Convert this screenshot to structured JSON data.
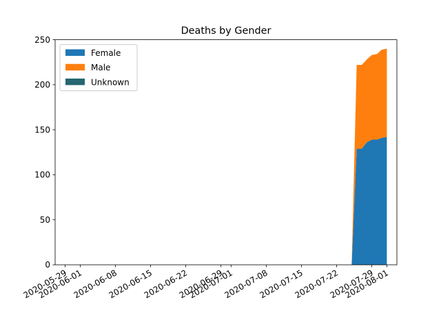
{
  "chart_data": {
    "type": "area",
    "stacked": true,
    "title": "Deaths by Gender",
    "xlabel": "",
    "ylabel": "",
    "x_range": [
      "2020-05-29",
      "2020-08-02"
    ],
    "xlim": [
      "2020-05-27",
      "2020-08-03"
    ],
    "ylim": [
      0,
      250
    ],
    "x_ticks": [
      "2020-05-29",
      "2020-06-01",
      "2020-06-08",
      "2020-06-15",
      "2020-06-22",
      "2020-06-29",
      "2020-07-01",
      "2020-07-08",
      "2020-07-15",
      "2020-07-22",
      "2020-07-29",
      "2020-08-01"
    ],
    "y_ticks": [
      0,
      50,
      100,
      150,
      200,
      250
    ],
    "grid": false,
    "legend_position": "top-left",
    "x": [
      "2020-07-25",
      "2020-07-26",
      "2020-07-27",
      "2020-07-28",
      "2020-07-29",
      "2020-07-30",
      "2020-07-31",
      "2020-08-01"
    ],
    "series": [
      {
        "name": "Female",
        "color": "#1f77b4",
        "values": [
          0,
          129,
          129,
          136,
          139,
          139,
          141,
          142
        ]
      },
      {
        "name": "Male",
        "color": "#ff7f0e",
        "values": [
          0,
          93,
          93,
          92,
          94,
          95,
          98,
          98
        ]
      },
      {
        "name": "Unknown",
        "color": "#256670",
        "values": [
          0,
          0,
          0,
          0,
          0,
          0,
          0,
          0
        ]
      }
    ]
  }
}
